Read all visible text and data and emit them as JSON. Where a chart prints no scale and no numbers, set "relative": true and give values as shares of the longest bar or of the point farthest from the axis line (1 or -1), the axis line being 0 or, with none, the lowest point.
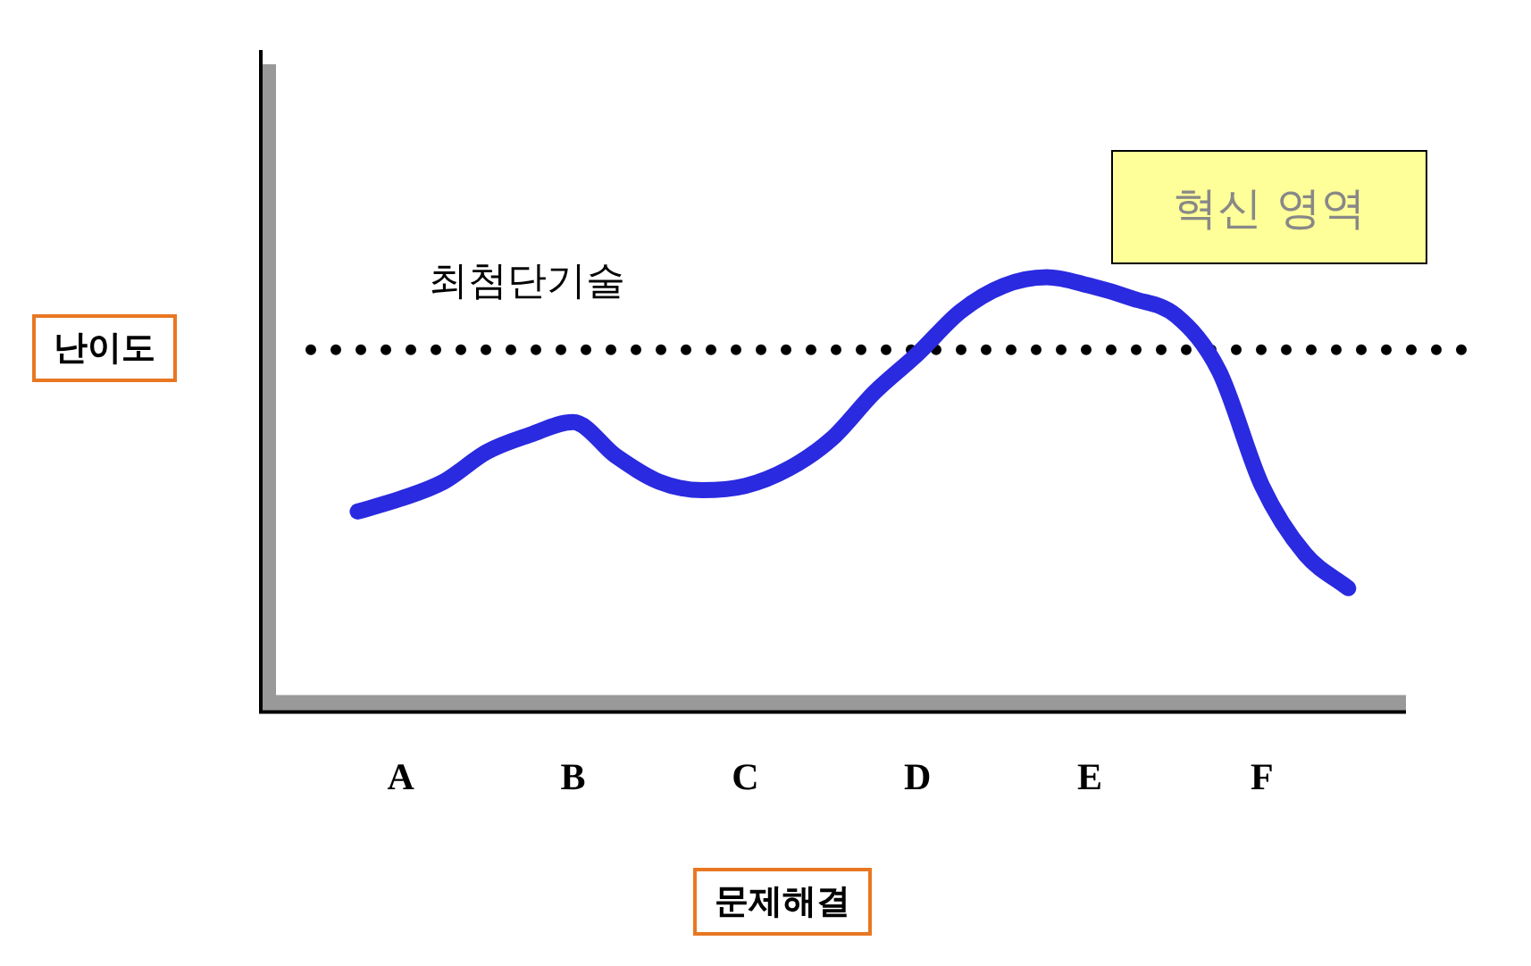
{
  "chart_data": {
    "type": "line",
    "relative": true,
    "xlabel": "문제해결",
    "ylabel": "난이도",
    "categories": [
      null,
      null,
      null,
      "A",
      null,
      null,
      null,
      "B",
      null,
      null,
      null,
      "C",
      null,
      null,
      null,
      "D",
      null,
      null,
      null,
      "E",
      null,
      null,
      null,
      "F",
      null,
      null,
      null,
      null,
      null
    ],
    "values": [
      null,
      null,
      0.45,
      0.48,
      0.52,
      0.59,
      0.63,
      0.66,
      0.58,
      0.52,
      0.5,
      0.51,
      0.55,
      0.62,
      0.73,
      0.82,
      0.92,
      0.98,
      1,
      0.98,
      0.95,
      0.91,
      0.78,
      0.51,
      0.35,
      0.27,
      null,
      null,
      null
    ],
    "color": "#2a2ae0",
    "marker": "none",
    "line_style": "solid",
    "ref_lines": [
      {
        "axis": "y",
        "value": 0.83,
        "label": "최첨단기술",
        "line_style": "dotted",
        "color": "#000000"
      }
    ],
    "annotations": [
      "혁신 영역"
    ]
  }
}
